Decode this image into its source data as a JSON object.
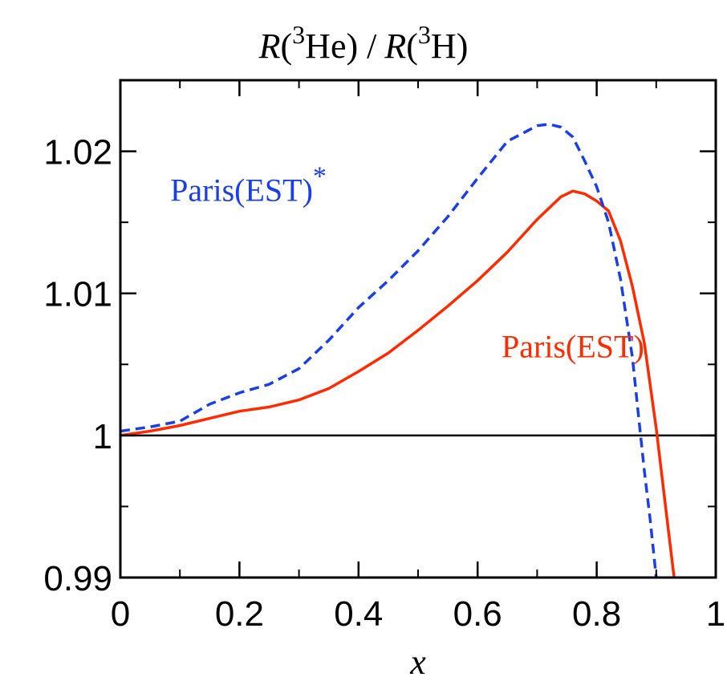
{
  "chart_data": {
    "type": "line",
    "title": {
      "r1": "R",
      "sup1": "3",
      "nucleus1": "He",
      "separator": "/",
      "r2": "R",
      "sup2": "3",
      "nucleus2": "H"
    },
    "xlabel": "x",
    "ylabel": "",
    "xlim": [
      0,
      1
    ],
    "ylim": [
      0.99,
      1.025
    ],
    "x_ticks": [
      {
        "value": 0,
        "label": "0"
      },
      {
        "value": 0.2,
        "label": "0.2"
      },
      {
        "value": 0.4,
        "label": "0.4"
      },
      {
        "value": 0.6,
        "label": "0.6"
      },
      {
        "value": 0.8,
        "label": "0.8"
      },
      {
        "value": 1,
        "label": "1"
      }
    ],
    "y_ticks": [
      {
        "value": 0.99,
        "label": "0.99"
      },
      {
        "value": 1.0,
        "label": "1"
      },
      {
        "value": 1.01,
        "label": "1.01"
      },
      {
        "value": 1.02,
        "label": "1.02"
      }
    ],
    "x_minor_step": 0.1,
    "y_minor_step": 0.005,
    "reference_line": 1.0,
    "grid": false,
    "legend": "none (inline labels)",
    "series": [
      {
        "name": "Paris(EST)",
        "label_text": "Paris(EST)",
        "label_anchor": {
          "x": 0.76,
          "y": 1.0055
        },
        "color": "#ff2a00",
        "dash": "solid",
        "x": [
          0,
          0.05,
          0.1,
          0.15,
          0.2,
          0.25,
          0.3,
          0.35,
          0.4,
          0.45,
          0.5,
          0.55,
          0.6,
          0.65,
          0.7,
          0.74,
          0.76,
          0.78,
          0.8,
          0.82,
          0.84,
          0.86,
          0.88,
          0.9,
          0.91,
          0.92,
          0.93
        ],
        "y": [
          1.0,
          1.0003,
          1.0007,
          1.0012,
          1.0017,
          1.002,
          1.0025,
          1.0033,
          1.0045,
          1.0058,
          1.0074,
          1.0091,
          1.0109,
          1.0129,
          1.0152,
          1.0168,
          1.0172,
          1.017,
          1.0165,
          1.0158,
          1.0137,
          1.0105,
          1.0065,
          1.0005,
          0.997,
          0.9935,
          0.99
        ]
      },
      {
        "name": "Paris(EST)*",
        "label_text": "Paris(EST)",
        "label_superscript": "*",
        "label_anchor": {
          "x": 0.215,
          "y": 1.0165
        },
        "color": "#1a3fe6",
        "dash": "dashed",
        "x": [
          0,
          0.05,
          0.1,
          0.15,
          0.2,
          0.25,
          0.3,
          0.35,
          0.4,
          0.45,
          0.5,
          0.55,
          0.6,
          0.65,
          0.7,
          0.72,
          0.74,
          0.76,
          0.78,
          0.8,
          0.82,
          0.84,
          0.86,
          0.87,
          0.88,
          0.89,
          0.9
        ],
        "y": [
          1.0003,
          1.0006,
          1.001,
          1.0022,
          1.003,
          1.0036,
          1.0047,
          1.0067,
          1.009,
          1.0109,
          1.013,
          1.0154,
          1.0181,
          1.0207,
          1.0218,
          1.0219,
          1.0217,
          1.021,
          1.0193,
          1.0175,
          1.015,
          1.011,
          1.0055,
          1.0015,
          0.9975,
          0.994,
          0.99
        ]
      }
    ]
  }
}
